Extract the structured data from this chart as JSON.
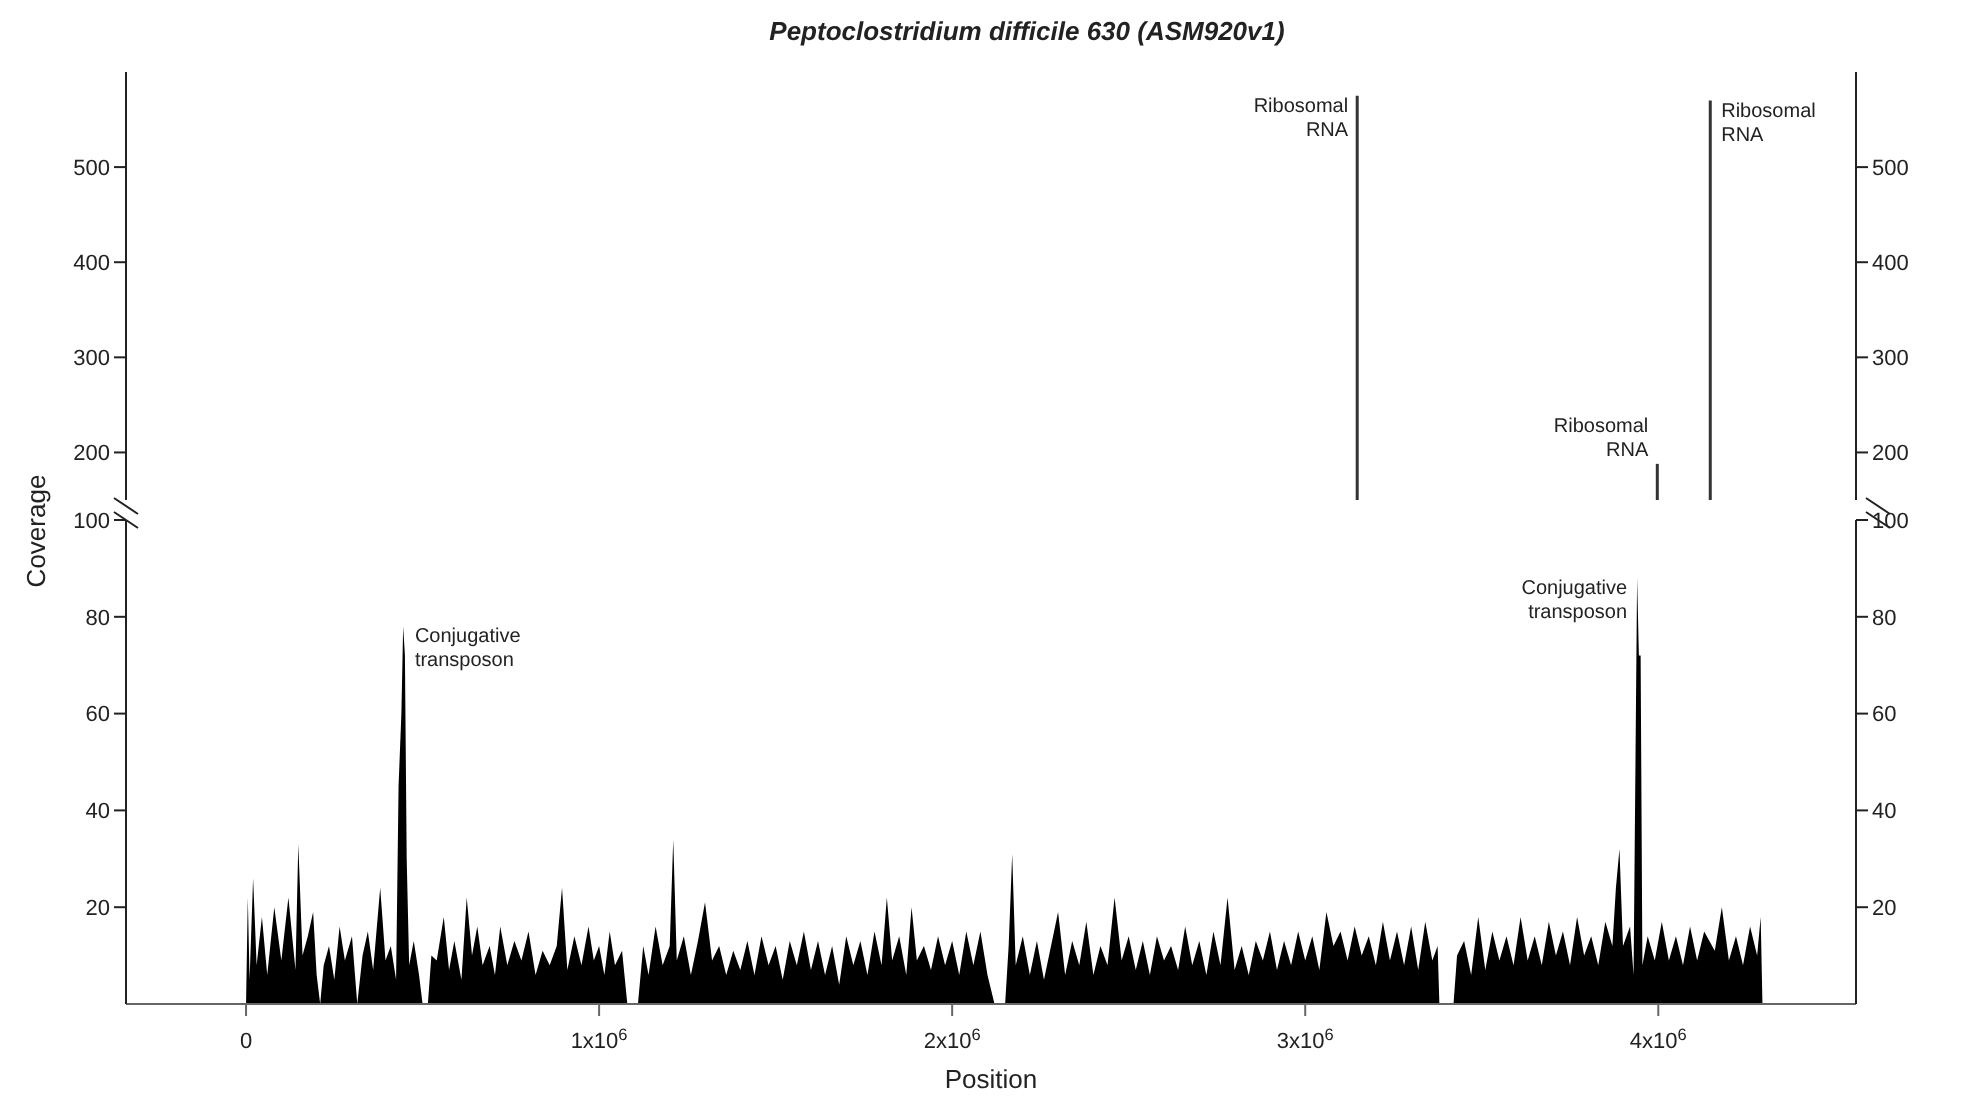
{
  "chart_data": [
    {
      "type": "bar",
      "title": "Peptoclostridium difficile 630 (ASM920v1)",
      "x": [
        3150000,
        4000000,
        4150000
      ],
      "series": [
        {
          "color": "#333333",
          "values": [
            575,
            188,
            570
          ]
        }
      ],
      "xlim": [
        -340000,
        4560000
      ],
      "ylim": [
        150,
        600
      ],
      "yticks": [
        200,
        300,
        400,
        500
      ],
      "y2lim": [
        150,
        600
      ],
      "y2ticks": [
        200,
        300,
        400,
        500
      ],
      "tick_labels": "y",
      "annotations": [
        {
          "text": "Ribosomal RNA",
          "x": 3150000,
          "y": 575
        },
        {
          "text": "Ribosomal RNA",
          "x": 4000000,
          "y": 188
        },
        {
          "text": "Ribosomal RNA",
          "x": 4150000,
          "y": 570
        }
      ]
    },
    {
      "type": "area",
      "xlabel": "Position",
      "ylabel": "Coverage",
      "x": [
        0,
        5000,
        10000,
        20000,
        30000,
        45000,
        60000,
        80000,
        100000,
        120000,
        140000,
        148000,
        160000,
        175000,
        190000,
        200000,
        210000,
        220000,
        235000,
        250000,
        265000,
        280000,
        300000,
        315000,
        330000,
        345000,
        360000,
        380000,
        395000,
        410000,
        425000,
        432000,
        440000,
        445000,
        450000,
        455000,
        462000,
        475000,
        490000,
        500000,
        515000,
        525000,
        540000,
        560000,
        575000,
        590000,
        610000,
        625000,
        640000,
        655000,
        670000,
        690000,
        705000,
        720000,
        740000,
        760000,
        780000,
        800000,
        820000,
        840000,
        860000,
        880000,
        895000,
        910000,
        930000,
        950000,
        970000,
        985000,
        1000000,
        1015000,
        1030000,
        1045000,
        1065000,
        1080000,
        1110000,
        1125000,
        1140000,
        1160000,
        1180000,
        1200000,
        1210000,
        1220000,
        1240000,
        1260000,
        1280000,
        1300000,
        1320000,
        1340000,
        1360000,
        1380000,
        1400000,
        1420000,
        1440000,
        1460000,
        1480000,
        1500000,
        1520000,
        1540000,
        1560000,
        1580000,
        1600000,
        1620000,
        1640000,
        1660000,
        1680000,
        1700000,
        1720000,
        1740000,
        1760000,
        1780000,
        1800000,
        1815000,
        1830000,
        1850000,
        1870000,
        1885000,
        1900000,
        1920000,
        1940000,
        1960000,
        1980000,
        2000000,
        2020000,
        2040000,
        2060000,
        2080000,
        2100000,
        2120000,
        2150000,
        2160000,
        2170000,
        2180000,
        2200000,
        2220000,
        2240000,
        2260000,
        2280000,
        2300000,
        2320000,
        2340000,
        2360000,
        2380000,
        2400000,
        2420000,
        2440000,
        2460000,
        2480000,
        2500000,
        2520000,
        2540000,
        2560000,
        2580000,
        2600000,
        2620000,
        2640000,
        2660000,
        2680000,
        2700000,
        2720000,
        2740000,
        2760000,
        2780000,
        2800000,
        2820000,
        2840000,
        2860000,
        2880000,
        2900000,
        2920000,
        2940000,
        2960000,
        2980000,
        3000000,
        3020000,
        3040000,
        3060000,
        3080000,
        3100000,
        3120000,
        3140000,
        3160000,
        3180000,
        3200000,
        3220000,
        3240000,
        3260000,
        3280000,
        3300000,
        3320000,
        3340000,
        3360000,
        3375000,
        3380000,
        3420000,
        3430000,
        3450000,
        3470000,
        3490000,
        3510000,
        3530000,
        3550000,
        3570000,
        3590000,
        3610000,
        3630000,
        3650000,
        3670000,
        3690000,
        3710000,
        3730000,
        3750000,
        3770000,
        3790000,
        3810000,
        3830000,
        3850000,
        3870000,
        3880000,
        3890000,
        3900000,
        3920000,
        3930000,
        3940000,
        3945000,
        3950000,
        3955000,
        3970000,
        3990000,
        4010000,
        4030000,
        4050000,
        4070000,
        4090000,
        4110000,
        4130000,
        4160000,
        4180000,
        4200000,
        4220000,
        4240000,
        4260000,
        4280000,
        4290000,
        4295000
      ],
      "series": [
        {
          "color": "#000000",
          "values": [
            0,
            22,
            5,
            26,
            8,
            18,
            6,
            20,
            9,
            22,
            7,
            33,
            10,
            14,
            19,
            6,
            0,
            8,
            12,
            5,
            16,
            9,
            14,
            0,
            10,
            15,
            7,
            24,
            9,
            12,
            5,
            45,
            60,
            78,
            72,
            30,
            8,
            13,
            6,
            0,
            0,
            10,
            9,
            18,
            7,
            13,
            5,
            22,
            10,
            16,
            8,
            12,
            6,
            16,
            8,
            13,
            9,
            15,
            6,
            11,
            8,
            12,
            24,
            7,
            14,
            8,
            16,
            9,
            12,
            6,
            15,
            8,
            11,
            0,
            0,
            12,
            6,
            16,
            8,
            12,
            34,
            9,
            14,
            6,
            13,
            21,
            9,
            12,
            6,
            11,
            7,
            13,
            6,
            14,
            8,
            12,
            5,
            13,
            8,
            15,
            7,
            13,
            6,
            12,
            4,
            14,
            8,
            13,
            6,
            15,
            8,
            22,
            9,
            14,
            6,
            20,
            9,
            12,
            7,
            14,
            8,
            13,
            6,
            15,
            8,
            15,
            6,
            0,
            0,
            12,
            31,
            8,
            14,
            6,
            13,
            5,
            12,
            19,
            6,
            13,
            8,
            17,
            6,
            12,
            8,
            22,
            9,
            14,
            7,
            13,
            6,
            14,
            9,
            12,
            7,
            16,
            8,
            13,
            6,
            15,
            8,
            22,
            7,
            12,
            6,
            13,
            9,
            15,
            7,
            13,
            8,
            15,
            9,
            14,
            7,
            19,
            12,
            15,
            9,
            16,
            10,
            14,
            8,
            17,
            9,
            15,
            8,
            16,
            7,
            17,
            9,
            12,
            0,
            0,
            10,
            13,
            6,
            18,
            7,
            15,
            9,
            14,
            8,
            18,
            9,
            14,
            8,
            17,
            10,
            15,
            8,
            18,
            10,
            14,
            8,
            17,
            12,
            24,
            32,
            12,
            16,
            6,
            88,
            72,
            72,
            8,
            14,
            9,
            17,
            9,
            14,
            8,
            16,
            9,
            15,
            11,
            20,
            9,
            14,
            8,
            16,
            10,
            18,
            0
          ]
        }
      ],
      "xlim": [
        -340000,
        4560000
      ],
      "xticks": [
        0,
        {
          "value": 1000000,
          "label": "1x10$^{6}$"
        },
        {
          "value": 2000000,
          "label": "2x10$^{6}$"
        },
        {
          "value": 3000000,
          "label": "3x10$^{6}$"
        },
        {
          "value": 4000000,
          "label": "4x10$^{6}$"
        }
      ],
      "ylim": [
        0,
        100
      ],
      "yticks": [
        20,
        40,
        60,
        80,
        100
      ],
      "y2lim": [
        0,
        100
      ],
      "y2ticks": [
        20,
        40,
        60,
        80,
        100
      ],
      "annotations": [
        {
          "text": "Conjugative transposon",
          "x": 450000,
          "y": 78
        },
        {
          "text": "Conjugative transposon",
          "x": 3940000,
          "y": 88
        }
      ]
    }
  ]
}
